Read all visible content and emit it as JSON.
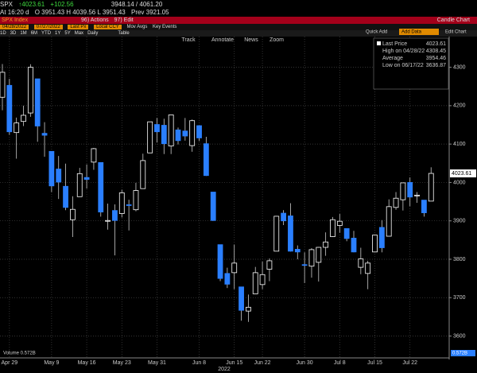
{
  "header": {
    "ticker": "SPX",
    "last": "↑4023.61",
    "change": "+102.56",
    "range": "3948.14 / 4061.20",
    "time": "At 16:20 d",
    "ohlc": "O 3951.43 H 4039.56 L 3951.43",
    "prev": "Prev 3921.05",
    "security": "SPX Index",
    "actions": "96) Actions",
    "edit": "97) Edit",
    "view": "Candle Chart",
    "start_date": "04/28/2022",
    "end_date": "07/27/2022",
    "field": "Last Px",
    "currency": "Local CCY",
    "mov_avgs": "Mov Avgs",
    "key_events": "Key Events",
    "periods": [
      "1D",
      "3D",
      "1M",
      "6M",
      "YTD",
      "1Y",
      "5Y",
      "Max",
      "Daily"
    ],
    "table": "Table",
    "tools": [
      "Track",
      "Annotate",
      "News",
      "Zoom"
    ],
    "quick_add": "Quick Add",
    "add_data": "Add Data",
    "edit_chart": "Edit Chart"
  },
  "chart_data": {
    "type": "candlestick",
    "categories": [
      null,
      "Apr 29",
      null,
      null,
      null,
      null,
      null,
      "May 9",
      null,
      null,
      null,
      null,
      "May 16",
      null,
      null,
      null,
      null,
      "May 23",
      null,
      null,
      null,
      null,
      "May 31",
      null,
      null,
      null,
      null,
      null,
      "Jun 8",
      null,
      null,
      null,
      null,
      "Jun 15",
      null,
      null,
      null,
      "Jun 22",
      null,
      null,
      null,
      null,
      null,
      "Jun 30",
      null,
      null,
      null,
      null,
      "Jul 8",
      null,
      null,
      null,
      null,
      "Jul 15",
      null,
      null,
      null,
      null,
      "Jul 22",
      null,
      null,
      null
    ],
    "year_label": "2022",
    "open": [
      4222,
      4253,
      4130,
      4159,
      4181,
      4270,
      4128,
      4081,
      4035,
      3990,
      3903,
      3963,
      4013,
      4053,
      4052,
      3900,
      3927,
      3919,
      3942,
      3929,
      3984,
      4077,
      4151,
      4149,
      4095,
      4137,
      4134,
      4096,
      4148,
      4101,
      3975,
      3838,
      3763,
      3765,
      3728,
      3665,
      3710,
      3734,
      3774,
      3821,
      3920,
      3913,
      3826,
      3786,
      3782,
      3792,
      3831,
      3859,
      3888,
      3880,
      3855,
      3779,
      3763,
      3819,
      3883,
      3860,
      3935,
      3955,
      4000,
      3965,
      3954,
      3951.43
    ],
    "high": [
      4308.45,
      4270,
      4169,
      4200,
      4308,
      4270,
      4157,
      4081,
      4069,
      4049,
      3964,
      4038,
      4047,
      4090,
      4052,
      3945,
      3943,
      3981,
      3955,
      3999,
      4075,
      4158,
      4168,
      4166,
      4177,
      4143,
      4168,
      4164,
      4149,
      4119,
      3975,
      3838,
      3778,
      3838,
      3728,
      3708,
      3780,
      3794,
      3802,
      3913,
      3928,
      3946,
      3836,
      3818,
      3829,
      3832,
      3870,
      3910,
      3918,
      3880,
      3874,
      3830,
      3796,
      3864,
      3902,
      3956,
      3975,
      3999,
      4013,
      3975,
      3954,
      4039.56
    ],
    "low": [
      4188,
      4124,
      4062,
      4147,
      4171,
      4106,
      4067,
      3975,
      3957,
      3928,
      3858,
      3963,
      3984,
      4033,
      3911,
      3877,
      3810,
      3909,
      3875,
      3925,
      3984,
      4077,
      4104,
      4074,
      4074,
      4099,
      4109,
      4080,
      4108,
      4017,
      3900,
      3743,
      3725,
      3722,
      3640,
      3636.87,
      3710,
      3722,
      3743,
      3821,
      3889,
      3820,
      3800,
      3738,
      3752,
      3742,
      3809,
      3858,
      3869,
      3847,
      3818,
      3761,
      3722,
      3818,
      3818,
      3860,
      3929,
      3927,
      3938,
      3947,
      3911,
      3951.43
    ],
    "close": [
      4287,
      4132,
      4155,
      4175,
      4300,
      4147,
      4123,
      3991,
      4001,
      3935,
      3930,
      4023,
      4008,
      4088,
      3923,
      3901,
      3901,
      3973,
      3941,
      3979,
      4057,
      4158,
      4132,
      4101,
      4176,
      4109,
      4121,
      4161,
      4116,
      4018,
      3901,
      3750,
      3735,
      3790,
      3667,
      3675,
      3765,
      3760,
      3796,
      3912,
      3900,
      3821,
      3819,
      3785,
      3825,
      3831,
      3845,
      3903,
      3899,
      3854,
      3819,
      3801,
      3790,
      3863,
      3830,
      3937,
      3959,
      3999,
      3962,
      3967,
      3921,
      4023.61
    ],
    "up_color": "#ffffff",
    "down_color": "#2a7fff",
    "ylim": [
      3570,
      4380
    ],
    "yticks": [
      3600,
      3700,
      3800,
      3900,
      4000,
      4100,
      4200,
      4300
    ],
    "grid": true,
    "legend": [
      {
        "name": "Last Price",
        "value": 4023.61
      },
      {
        "name": "High on 04/28/22",
        "value": 4308.45
      },
      {
        "name": "Average",
        "value": 3954.46
      },
      {
        "name": "Low on 06/17/22",
        "value": 3636.87
      }
    ],
    "legend_position": "upper right",
    "volume_label": "Volume 0.572B",
    "volume_axis_label": "0.572B"
  }
}
